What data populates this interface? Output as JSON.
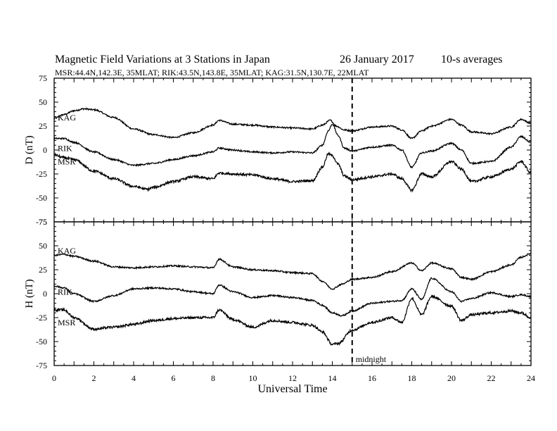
{
  "header": {
    "title": "Magnetic Field Variations at 3 Stations in Japan",
    "date": "26 January  2017",
    "averaging": "10-s averages",
    "stations": "MSR:44.4N,142.3E, 35MLAT;  RIK:43.5N,143.8E, 35MLAT;  KAG:31.5N,130.7E, 22MLAT"
  },
  "chart_data": [
    {
      "type": "line",
      "panel": "D",
      "ylabel": "D (nT)",
      "ylim": [
        -75,
        75
      ],
      "yticks": [
        75,
        50,
        25,
        0,
        -25,
        -50,
        -75
      ],
      "xlim": [
        0,
        24
      ],
      "marker_line": {
        "x": 15,
        "label": "midnight"
      },
      "series": [
        {
          "name": "KAG",
          "label_y": 34,
          "x": [
            0,
            0.5,
            1,
            1.5,
            2,
            3,
            4,
            5,
            6,
            7,
            8,
            8.3,
            9,
            10,
            11,
            12,
            13,
            13.5,
            13.9,
            14.2,
            14.6,
            15,
            16,
            17,
            17.5,
            18,
            18.5,
            19,
            20,
            20.5,
            21,
            22,
            23,
            23.5,
            24
          ],
          "values": [
            33,
            37,
            41,
            43,
            42,
            34,
            22,
            16,
            13,
            18,
            26,
            31,
            27,
            26,
            24,
            23,
            22,
            26,
            31,
            25,
            21,
            20,
            24,
            25,
            21,
            12,
            20,
            25,
            32,
            26,
            19,
            17,
            24,
            32,
            28
          ]
        },
        {
          "name": "RIK",
          "label_y": 2,
          "x": [
            0,
            0.5,
            1,
            2,
            3,
            4,
            5,
            6,
            7,
            8,
            8.3,
            9,
            10,
            11,
            12,
            13,
            13.5,
            13.8,
            14,
            14.3,
            14.6,
            15,
            16,
            17,
            17.5,
            18,
            18.5,
            19,
            20,
            20.5,
            21,
            22,
            23,
            23.5,
            24
          ],
          "values": [
            12,
            12,
            8,
            -2,
            -10,
            -16,
            -14,
            -10,
            -6,
            -2,
            2,
            0,
            -2,
            -3,
            -2,
            -3,
            5,
            20,
            27,
            15,
            2,
            -1,
            3,
            5,
            0,
            -18,
            -3,
            -1,
            7,
            0,
            -14,
            -12,
            3,
            14,
            8
          ]
        },
        {
          "name": "MSR",
          "label_y": -12,
          "x": [
            0,
            0.5,
            1,
            2,
            3,
            4,
            4.7,
            5,
            6,
            7,
            8,
            8.3,
            9,
            10,
            11,
            12,
            13,
            13.5,
            13.8,
            14,
            14.3,
            14.6,
            15,
            16,
            17,
            17.5,
            18,
            18.5,
            19,
            20,
            20.5,
            21,
            22,
            23,
            23.5,
            24
          ],
          "values": [
            -5,
            -8,
            -10,
            -22,
            -30,
            -38,
            -41,
            -39,
            -33,
            -28,
            -30,
            -24,
            -25,
            -26,
            -30,
            -33,
            -32,
            -18,
            -4,
            -6,
            -15,
            -27,
            -31,
            -28,
            -25,
            -30,
            -42,
            -25,
            -28,
            -12,
            -20,
            -33,
            -28,
            -20,
            -12,
            -24
          ]
        }
      ]
    },
    {
      "type": "line",
      "panel": "H",
      "ylabel": "H (nT)",
      "ylim": [
        -75,
        75
      ],
      "yticks": [
        75,
        50,
        25,
        0,
        -25,
        -50,
        -75
      ],
      "xlim": [
        0,
        24
      ],
      "xlabel": "Universal Time",
      "xticks": [
        0,
        2,
        4,
        6,
        8,
        10,
        12,
        14,
        16,
        18,
        20,
        22,
        24
      ],
      "marker_line": {
        "x": 15,
        "label": "midnight"
      },
      "series": [
        {
          "name": "KAG",
          "label_y": 45,
          "x": [
            0,
            0.5,
            1,
            2,
            3,
            4,
            5,
            6,
            7,
            8,
            8.3,
            9,
            10,
            11,
            12,
            13,
            13.5,
            14,
            14.5,
            15,
            16,
            17,
            18,
            18.5,
            19,
            20,
            20.5,
            21,
            22,
            23,
            23.5,
            24
          ],
          "values": [
            40,
            41,
            39,
            34,
            28,
            27,
            28,
            29,
            28,
            27,
            36,
            28,
            25,
            24,
            22,
            21,
            13,
            5,
            10,
            15,
            17,
            23,
            32,
            24,
            32,
            26,
            17,
            15,
            23,
            30,
            38,
            42
          ]
        },
        {
          "name": "RIK",
          "label_y": 2,
          "x": [
            0,
            0.5,
            1,
            2,
            3,
            4,
            5,
            6,
            7,
            8,
            8.3,
            9,
            10,
            11,
            12,
            13,
            13.5,
            14,
            14.5,
            15,
            16,
            17,
            17.5,
            18,
            18.5,
            19,
            20,
            20.5,
            21,
            22,
            23,
            23.5,
            24
          ],
          "values": [
            8,
            6,
            0,
            -8,
            -2,
            5,
            6,
            5,
            2,
            0,
            9,
            2,
            -4,
            -2,
            -4,
            -7,
            -12,
            -20,
            -23,
            -18,
            -10,
            -8,
            -7,
            5,
            -6,
            16,
            2,
            -8,
            -5,
            1,
            -3,
            -1,
            -3
          ]
        },
        {
          "name": "MSR",
          "label_y": -30,
          "x": [
            0,
            0.5,
            1,
            2,
            3,
            4,
            5,
            6,
            7,
            8,
            8.3,
            9,
            10,
            11,
            12,
            13,
            13.5,
            14,
            14.3,
            15,
            16,
            17,
            17.5,
            18,
            18.5,
            19,
            20,
            20.5,
            21,
            22,
            23,
            23.5,
            24
          ],
          "values": [
            -17,
            -17,
            -25,
            -37,
            -35,
            -32,
            -28,
            -26,
            -25,
            -25,
            -17,
            -27,
            -35,
            -28,
            -30,
            -33,
            -40,
            -53,
            -52,
            -38,
            -30,
            -25,
            -30,
            -5,
            -22,
            -3,
            -13,
            -28,
            -22,
            -20,
            -18,
            -20,
            -25
          ]
        }
      ]
    }
  ]
}
